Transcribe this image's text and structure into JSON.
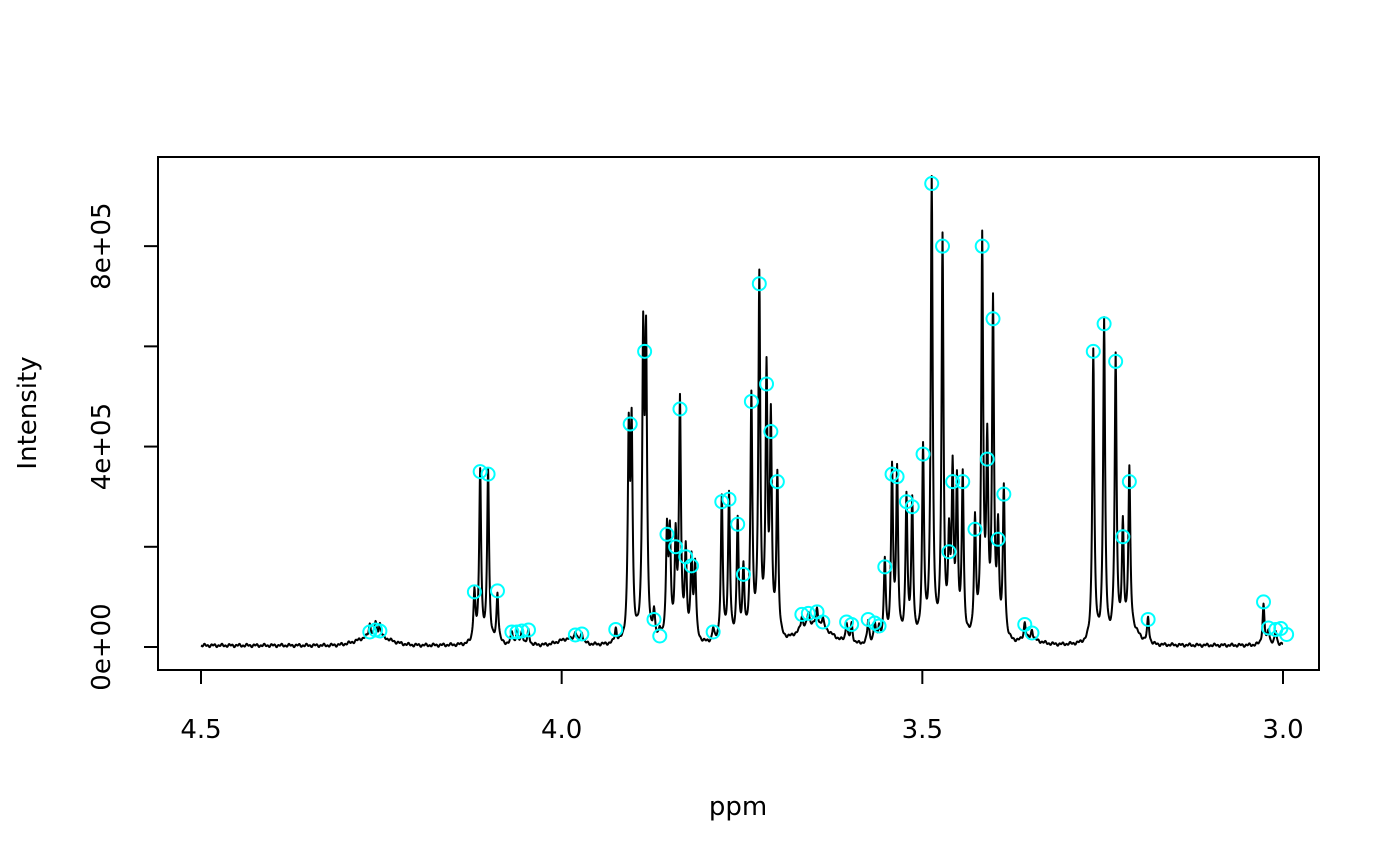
{
  "chart_data": {
    "type": "line",
    "title": "",
    "xlabel": "ppm",
    "ylabel": "Intensity",
    "xlim": [
      4.5,
      3.0
    ],
    "x_reversed": true,
    "ylim": [
      0,
      940000
    ],
    "x_ticks": [
      4.5,
      4.0,
      3.5,
      3.0
    ],
    "x_tick_labels": [
      "4.5",
      "4.0",
      "3.5",
      "3.0"
    ],
    "y_ticks": [
      0,
      200000,
      400000,
      600000,
      800000
    ],
    "y_tick_labels": [
      "0e+00",
      "",
      "4e+05",
      "",
      "8e+05"
    ],
    "grid": false,
    "legend": "none",
    "colors": {
      "spectrum": "#000000",
      "peak_marker": "#00ffff"
    },
    "series": [
      {
        "kind": "spectrum",
        "baseline": 3000,
        "broad_humps": [
          {
            "ppm": 4.26,
            "height": 18000,
            "width": 0.03
          },
          {
            "ppm": 3.99,
            "height": 12000,
            "width": 0.02
          },
          {
            "ppm": 3.65,
            "height": 40000,
            "width": 0.03
          },
          {
            "ppm": 3.21,
            "height": 25000,
            "width": 0.015
          },
          {
            "ppm": 3.35,
            "height": 8000,
            "width": 0.02
          }
        ],
        "peaks": [
          {
            "ppm": 4.266,
            "height": 25000
          },
          {
            "ppm": 4.258,
            "height": 28000
          },
          {
            "ppm": 4.252,
            "height": 26000
          },
          {
            "ppm": 4.121,
            "height": 100000
          },
          {
            "ppm": 4.113,
            "height": 345000
          },
          {
            "ppm": 4.102,
            "height": 345000
          },
          {
            "ppm": 4.089,
            "height": 100000
          },
          {
            "ppm": 4.069,
            "height": 25000
          },
          {
            "ppm": 4.062,
            "height": 25000
          },
          {
            "ppm": 4.055,
            "height": 27000
          },
          {
            "ppm": 4.046,
            "height": 28000
          },
          {
            "ppm": 3.981,
            "height": 18000
          },
          {
            "ppm": 3.972,
            "height": 20000
          },
          {
            "ppm": 3.925,
            "height": 28000
          },
          {
            "ppm": 3.907,
            "height": 400000
          },
          {
            "ppm": 3.903,
            "height": 410000
          },
          {
            "ppm": 3.887,
            "height": 580000
          },
          {
            "ppm": 3.883,
            "height": 570000
          },
          {
            "ppm": 3.872,
            "height": 50000
          },
          {
            "ppm": 3.864,
            "height": 20000
          },
          {
            "ppm": 3.854,
            "height": 215000
          },
          {
            "ppm": 3.85,
            "height": 200000
          },
          {
            "ppm": 3.842,
            "height": 195000
          },
          {
            "ppm": 3.836,
            "height": 470000
          },
          {
            "ppm": 3.828,
            "height": 175000
          },
          {
            "ppm": 3.82,
            "height": 160000
          },
          {
            "ppm": 3.815,
            "height": 150000
          },
          {
            "ppm": 3.79,
            "height": 25000
          },
          {
            "ppm": 3.778,
            "height": 285000
          },
          {
            "ppm": 3.768,
            "height": 290000
          },
          {
            "ppm": 3.756,
            "height": 240000
          },
          {
            "ppm": 3.748,
            "height": 140000
          },
          {
            "ppm": 3.737,
            "height": 485000
          },
          {
            "ppm": 3.726,
            "height": 720000
          },
          {
            "ppm": 3.716,
            "height": 520000
          },
          {
            "ppm": 3.71,
            "height": 425000
          },
          {
            "ppm": 3.701,
            "height": 325000
          },
          {
            "ppm": 3.667,
            "height": 25000
          },
          {
            "ppm": 3.658,
            "height": 25000
          },
          {
            "ppm": 3.646,
            "height": 30000
          },
          {
            "ppm": 3.638,
            "height": 18000
          },
          {
            "ppm": 3.605,
            "height": 40000
          },
          {
            "ppm": 3.598,
            "height": 38000
          },
          {
            "ppm": 3.575,
            "height": 45000
          },
          {
            "ppm": 3.566,
            "height": 38000
          },
          {
            "ppm": 3.56,
            "height": 30000
          },
          {
            "ppm": 3.552,
            "height": 160000
          },
          {
            "ppm": 3.542,
            "height": 340000
          },
          {
            "ppm": 3.535,
            "height": 335000
          },
          {
            "ppm": 3.522,
            "height": 285000
          },
          {
            "ppm": 3.514,
            "height": 275000
          },
          {
            "ppm": 3.499,
            "height": 380000
          },
          {
            "ppm": 3.487,
            "height": 920000
          },
          {
            "ppm": 3.472,
            "height": 795000
          },
          {
            "ppm": 3.463,
            "height": 185000
          },
          {
            "ppm": 3.458,
            "height": 320000
          },
          {
            "ppm": 3.452,
            "height": 300000
          },
          {
            "ppm": 3.444,
            "height": 325000
          },
          {
            "ppm": 3.427,
            "height": 230000
          },
          {
            "ppm": 3.417,
            "height": 790000
          },
          {
            "ppm": 3.41,
            "height": 370000
          },
          {
            "ppm": 3.402,
            "height": 660000
          },
          {
            "ppm": 3.395,
            "height": 210000
          },
          {
            "ppm": 3.387,
            "height": 300000
          },
          {
            "ppm": 3.358,
            "height": 35000
          },
          {
            "ppm": 3.348,
            "height": 20000
          },
          {
            "ppm": 3.263,
            "height": 585000
          },
          {
            "ppm": 3.248,
            "height": 640000
          },
          {
            "ppm": 3.232,
            "height": 565000
          },
          {
            "ppm": 3.222,
            "height": 215000
          },
          {
            "ppm": 3.213,
            "height": 320000
          },
          {
            "ppm": 3.187,
            "height": 50000
          },
          {
            "ppm": 3.027,
            "height": 80000
          },
          {
            "ppm": 3.02,
            "height": 30000
          },
          {
            "ppm": 3.01,
            "height": 28000
          },
          {
            "ppm": 2.995,
            "height": 20000
          }
        ]
      },
      {
        "name": "",
        "kind": "peak_markers",
        "points": [
          [
            4.266,
            30000
          ],
          [
            4.258,
            34000
          ],
          [
            4.252,
            32000
          ],
          [
            4.121,
            110000
          ],
          [
            4.113,
            350000
          ],
          [
            4.102,
            345000
          ],
          [
            4.089,
            112000
          ],
          [
            4.069,
            30000
          ],
          [
            4.062,
            30000
          ],
          [
            4.055,
            32000
          ],
          [
            4.046,
            34000
          ],
          [
            3.981,
            24000
          ],
          [
            3.972,
            26000
          ],
          [
            3.925,
            35000
          ],
          [
            3.905,
            445000
          ],
          [
            3.885,
            590000
          ],
          [
            3.872,
            55000
          ],
          [
            3.864,
            22000
          ],
          [
            3.854,
            225000
          ],
          [
            3.842,
            200000
          ],
          [
            3.836,
            475000
          ],
          [
            3.828,
            180000
          ],
          [
            3.82,
            162000
          ],
          [
            3.79,
            30000
          ],
          [
            3.778,
            290000
          ],
          [
            3.768,
            295000
          ],
          [
            3.756,
            245000
          ],
          [
            3.748,
            145000
          ],
          [
            3.737,
            490000
          ],
          [
            3.726,
            725000
          ],
          [
            3.716,
            525000
          ],
          [
            3.71,
            430000
          ],
          [
            3.701,
            330000
          ],
          [
            3.667,
            65000
          ],
          [
            3.658,
            67000
          ],
          [
            3.646,
            70000
          ],
          [
            3.638,
            50000
          ],
          [
            3.605,
            50000
          ],
          [
            3.598,
            45000
          ],
          [
            3.575,
            55000
          ],
          [
            3.566,
            48000
          ],
          [
            3.56,
            42000
          ],
          [
            3.552,
            160000
          ],
          [
            3.542,
            345000
          ],
          [
            3.535,
            340000
          ],
          [
            3.522,
            290000
          ],
          [
            3.514,
            280000
          ],
          [
            3.499,
            385000
          ],
          [
            3.487,
            925000
          ],
          [
            3.472,
            800000
          ],
          [
            3.463,
            190000
          ],
          [
            3.458,
            330000
          ],
          [
            3.444,
            330000
          ],
          [
            3.427,
            235000
          ],
          [
            3.417,
            800000
          ],
          [
            3.41,
            375000
          ],
          [
            3.402,
            655000
          ],
          [
            3.395,
            215000
          ],
          [
            3.387,
            305000
          ],
          [
            3.358,
            45000
          ],
          [
            3.348,
            28000
          ],
          [
            3.263,
            590000
          ],
          [
            3.248,
            645000
          ],
          [
            3.232,
            570000
          ],
          [
            3.222,
            220000
          ],
          [
            3.213,
            330000
          ],
          [
            3.187,
            55000
          ],
          [
            3.027,
            90000
          ],
          [
            3.02,
            38000
          ],
          [
            3.01,
            35000
          ],
          [
            3.003,
            37000
          ],
          [
            2.995,
            25000
          ]
        ]
      }
    ]
  }
}
